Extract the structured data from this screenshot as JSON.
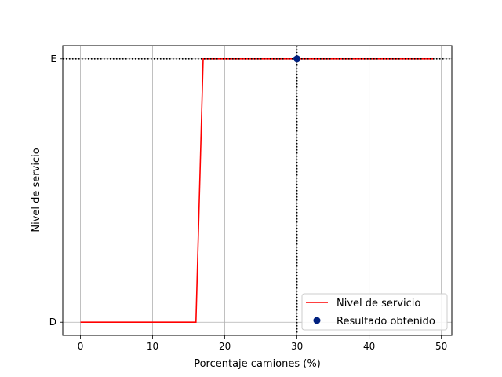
{
  "chart_data": {
    "type": "line",
    "xlabel": "Porcentaje camiones (%)",
    "ylabel": "Nivel de servicio",
    "xlim": [
      -2.45,
      51.45
    ],
    "ylim": [
      -0.05,
      1.05
    ],
    "x_ticks": [
      0,
      10,
      20,
      30,
      40,
      50
    ],
    "y_ticks": [
      {
        "value": 0,
        "label": "D"
      },
      {
        "value": 1,
        "label": "E"
      }
    ],
    "grid": true,
    "legend_position": "lower right",
    "series": [
      {
        "name": "Nivel de servicio",
        "kind": "line",
        "color": "#ff0000",
        "x": [
          0,
          16,
          17,
          49
        ],
        "y": [
          0,
          0,
          1,
          1
        ]
      },
      {
        "name": "Resultado obtenido",
        "kind": "scatter",
        "color": "#00207f",
        "x": [
          30
        ],
        "y": [
          1
        ]
      }
    ],
    "reference_lines": {
      "vertical_x": 30,
      "horizontal_y": 1,
      "style": "dotted",
      "color": "#000000"
    }
  }
}
